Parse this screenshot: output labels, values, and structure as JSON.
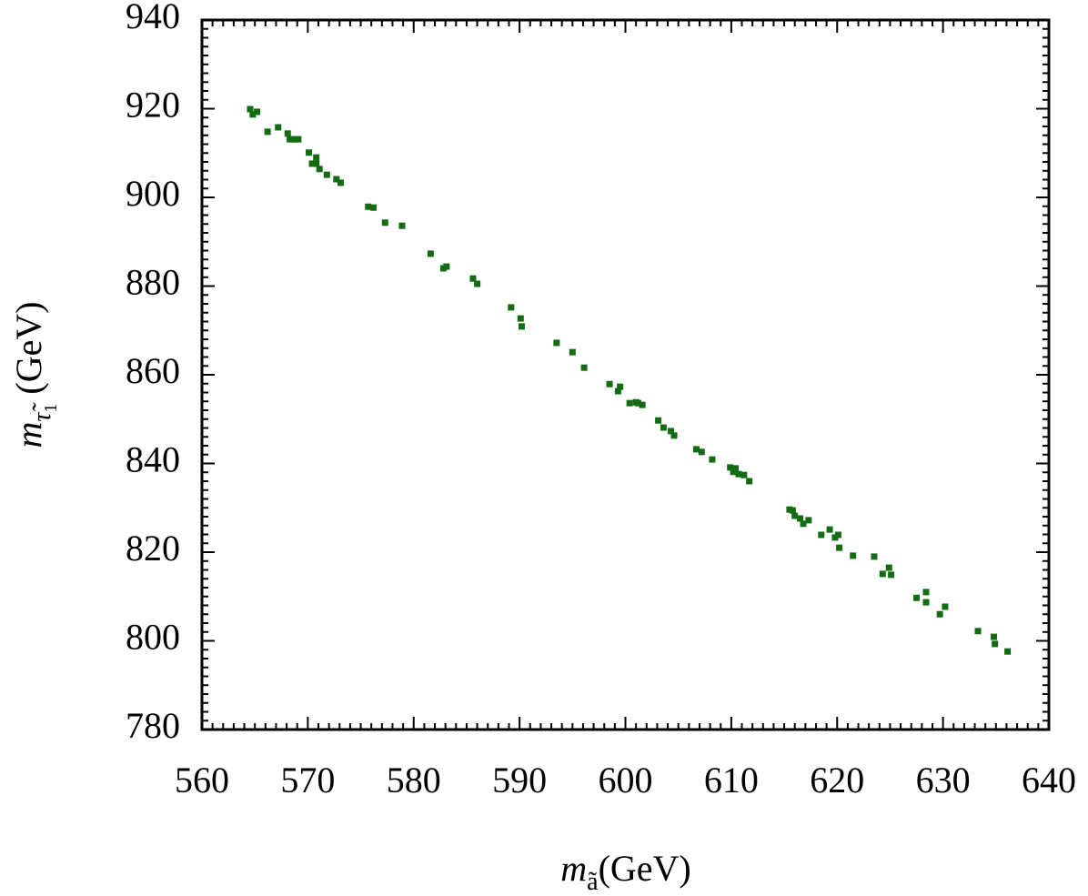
{
  "chart_data": {
    "type": "scatter",
    "xlabel": {
      "base": "m",
      "sub": "ã",
      "unit": "(GeV)"
    },
    "ylabel": {
      "base": "m",
      "sub": "τ̃",
      "subsub": "1",
      "unit": "(GeV)"
    },
    "xlim": [
      560,
      640
    ],
    "xticks": [
      560,
      570,
      580,
      590,
      600,
      610,
      620,
      630,
      640
    ],
    "ylim": [
      780,
      940
    ],
    "yticks": [
      780,
      800,
      820,
      840,
      860,
      880,
      900,
      920,
      940
    ],
    "color": "#136b13",
    "x": [
      564.55,
      564.8,
      565.2,
      566.2,
      567.2,
      568.1,
      568.3,
      568.8,
      569.1,
      570.1,
      570.4,
      570.8,
      570.8,
      571.1,
      571.8,
      572.7,
      573.1,
      575.7,
      576.2,
      577.3,
      578.9,
      581.6,
      582.8,
      583.1,
      585.6,
      586.0,
      589.2,
      590.1,
      590.2,
      593.5,
      595.0,
      596.1,
      598.5,
      599.3,
      599.5,
      600.4,
      601.0,
      601.2,
      601.6,
      603.1,
      603.6,
      604.3,
      604.6,
      606.7,
      607.2,
      608.2,
      609.9,
      610.2,
      610.4,
      610.7,
      611.2,
      611.7,
      615.5,
      615.8,
      616.0,
      616.5,
      616.8,
      617.3,
      618.5,
      619.3,
      619.8,
      620.1,
      620.2,
      621.5,
      623.5,
      624.3,
      624.9,
      625.1,
      627.5,
      628.4,
      628.4,
      629.7,
      630.2,
      633.3,
      634.8,
      634.9,
      636.1
    ],
    "values": [
      919.9,
      918.7,
      919.3,
      914.8,
      915.8,
      914.4,
      913.1,
      913.1,
      913.1,
      910.1,
      907.6,
      909.0,
      907.6,
      906.4,
      905.1,
      904.1,
      903.3,
      897.9,
      897.7,
      894.3,
      893.6,
      887.3,
      884.0,
      884.4,
      881.7,
      880.5,
      875.2,
      872.7,
      870.9,
      867.2,
      865.1,
      861.6,
      857.9,
      856.3,
      857.3,
      853.6,
      853.8,
      853.6,
      853.2,
      849.7,
      848.1,
      847.3,
      846.3,
      843.2,
      842.6,
      840.9,
      839.1,
      838.1,
      838.9,
      837.6,
      837.4,
      836.0,
      829.6,
      829.4,
      828.2,
      827.6,
      826.4,
      827.2,
      823.9,
      825.1,
      823.3,
      823.9,
      821.0,
      819.2,
      819.0,
      815.1,
      816.5,
      814.9,
      809.7,
      811.0,
      808.7,
      806.0,
      807.7,
      802.2,
      800.9,
      799.3,
      797.6
    ]
  }
}
